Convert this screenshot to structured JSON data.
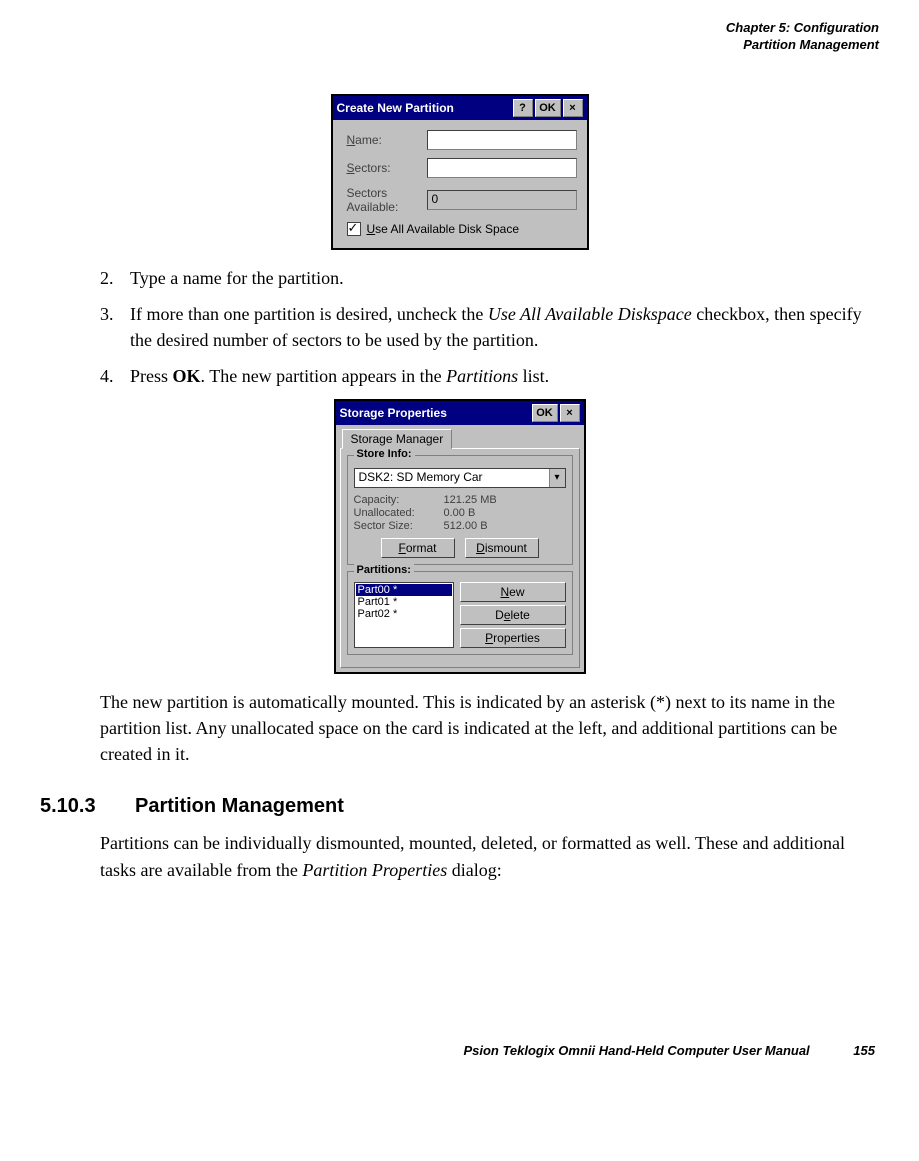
{
  "header": {
    "chapter": "Chapter 5: Configuration",
    "section": "Partition Management"
  },
  "dialog1": {
    "title": "Create New Partition",
    "btn_help": "?",
    "btn_ok": "OK",
    "btn_close": "×",
    "name_label": "Name:",
    "name_u": "N",
    "name_rest": "ame:",
    "sectors_label": "Sectors:",
    "sectors_u": "S",
    "sectors_rest": "ectors:",
    "avail_label1": "Sectors",
    "avail_label2": "Available:",
    "avail_value": "0",
    "check_u": "U",
    "check_rest": "se All Available Disk Space"
  },
  "steps": {
    "s2_num": "2.",
    "s2_a": "Type a name for the partition.",
    "s3_num": "3.",
    "s3_a": "If more than one partition is desired, uncheck the ",
    "s3_em": "Use All Available Diskspace",
    "s3_b": " checkbox, then specify the desired number of sectors to be used by the partition.",
    "s4_num": "4.",
    "s4_a": "Press ",
    "s4_strong": "OK",
    "s4_b": ". The new partition appears in the ",
    "s4_em": "Partitions",
    "s4_c": " list."
  },
  "dialog2": {
    "title": "Storage Properties",
    "btn_ok": "OK",
    "btn_close": "×",
    "tab": "Storage Manager",
    "group_store": "Store Info:",
    "combo_value": "DSK2: SD Memory Car",
    "combo_arrow": "▾",
    "capacity_k": "Capacity:",
    "capacity_v": "121.25 MB",
    "unalloc_k": "Unallocated:",
    "unalloc_v": "0.00 B",
    "sector_k": "Sector Size:",
    "sector_v": "512.00 B",
    "format_u": "F",
    "format_rest": "ormat",
    "dismount_u": "D",
    "dismount_rest": "ismount",
    "group_parts": "Partitions:",
    "p0": "Part00 *",
    "p1": "Part01 *",
    "p2": "Part02 *",
    "new_u": "N",
    "new_rest": "ew",
    "delete_pre": "D",
    "delete_u": "e",
    "delete_rest": "lete",
    "props_u": "P",
    "props_rest": "roperties"
  },
  "para_after": "The new partition is automatically mounted. This is indicated by an asterisk (*) next to its name in the partition list. Any unallocated space on the card is indicated at the left, and additional partitions can be created in it.",
  "sect": {
    "num": "5.10.3",
    "title": "Partition Management"
  },
  "para_sect_a": "Partitions can be individually dismounted, mounted, deleted, or formatted as well. These and additional tasks are available from the ",
  "para_sect_em": "Partition Properties",
  "para_sect_b": " dialog:",
  "footer": {
    "book": "Psion Teklogix Omnii Hand-Held Computer User Manual",
    "page": "155"
  },
  "colors": {
    "titlebar": "#000080",
    "dialog_bg": "#c0c0c0",
    "page_bg": "#ffffff",
    "text": "#000000"
  }
}
